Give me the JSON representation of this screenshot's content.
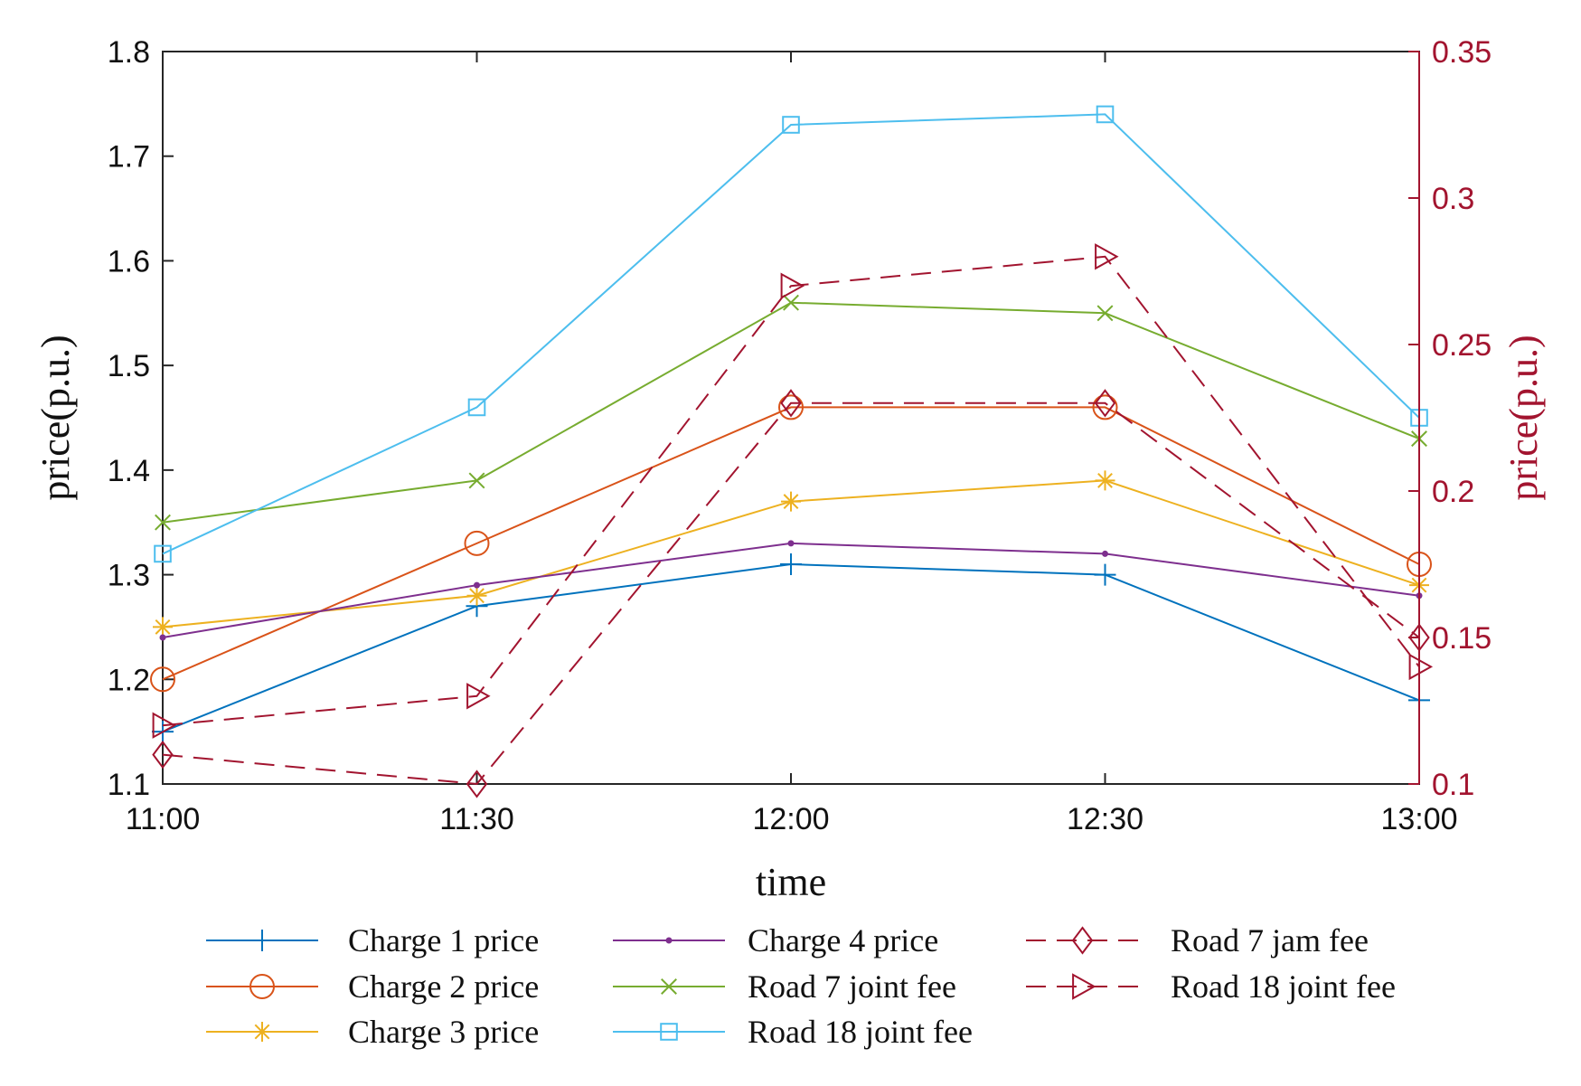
{
  "chart_data": {
    "type": "line",
    "categories": [
      "11:00",
      "11:30",
      "12:00",
      "12:30",
      "13:00"
    ],
    "xlabel": "time",
    "ylabel_left": "price(p.u.)",
    "ylabel_right": "price(p.u.)",
    "ylim_left": [
      1.1,
      1.8
    ],
    "ylim_right": [
      0.1,
      0.35
    ],
    "yticks_left": [
      "1.1",
      "1.2",
      "1.3",
      "1.4",
      "1.5",
      "1.6",
      "1.7",
      "1.8"
    ],
    "yticks_right": [
      "0.1",
      "0.15",
      "0.2",
      "0.25",
      "0.3",
      "0.35"
    ],
    "right_axis_color": "#A2142F",
    "series": [
      {
        "name": "Charge 1 price",
        "axis": "left",
        "color": "#0072BD",
        "marker": "plus",
        "dash": false,
        "values": [
          1.15,
          1.27,
          1.31,
          1.3,
          1.18
        ]
      },
      {
        "name": "Charge 2 price",
        "axis": "left",
        "color": "#D95319",
        "marker": "circle",
        "dash": false,
        "values": [
          1.2,
          1.33,
          1.46,
          1.46,
          1.31
        ]
      },
      {
        "name": "Charge 3 price",
        "axis": "left",
        "color": "#EDB120",
        "marker": "asterisk",
        "dash": false,
        "values": [
          1.25,
          1.28,
          1.37,
          1.39,
          1.29
        ]
      },
      {
        "name": "Charge 4 price",
        "axis": "left",
        "color": "#7E2F8E",
        "marker": "dot",
        "dash": false,
        "values": [
          1.24,
          1.29,
          1.33,
          1.32,
          1.28
        ]
      },
      {
        "name": "Road 7 joint fee",
        "axis": "left",
        "color": "#77AC30",
        "marker": "cross",
        "dash": false,
        "values": [
          1.35,
          1.39,
          1.56,
          1.55,
          1.43
        ]
      },
      {
        "name": "Road 18 joint fee",
        "axis": "left",
        "color": "#4DBEEE",
        "marker": "square",
        "dash": false,
        "values": [
          1.32,
          1.46,
          1.73,
          1.74,
          1.45
        ]
      },
      {
        "name": "Road 7 jam fee",
        "axis": "right",
        "color": "#A2142F",
        "marker": "diamond",
        "dash": true,
        "values": [
          0.11,
          0.1,
          0.23,
          0.23,
          0.15
        ]
      },
      {
        "name": "Road 18 joint fee",
        "axis": "right",
        "color": "#A2142F",
        "marker": "triangle-right",
        "dash": true,
        "values": [
          0.12,
          0.13,
          0.27,
          0.28,
          0.14
        ]
      }
    ]
  }
}
